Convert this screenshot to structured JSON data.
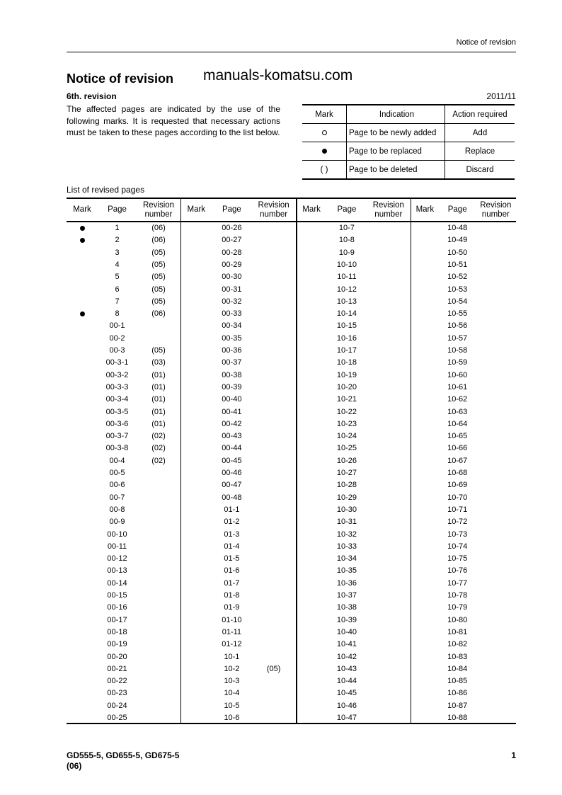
{
  "running_header": "Notice of revision",
  "title": "Notice of revision",
  "watermark": "manuals-komatsu.com",
  "revision": {
    "label": "6th. revision",
    "date": "2011/11"
  },
  "intro": "The affected pages are indicated by the use of the following marks. It is requested that necessary actions must be taken to these pages according to the list below.",
  "legend": {
    "headers": [
      "Mark",
      "Indication",
      "Action required"
    ],
    "rows": [
      {
        "mark": "circle",
        "indication": "Page to be newly added",
        "action": "Add"
      },
      {
        "mark": "filled-dot",
        "indication": "Page to be replaced",
        "action": "Replace"
      },
      {
        "mark": "( )",
        "indication": "Page to be deleted",
        "action": "Discard"
      }
    ]
  },
  "list_label": "List of revised pages",
  "list_headers": {
    "mark": "Mark",
    "page": "Page",
    "revision": "Revision number"
  },
  "columns": [
    [
      [
        "●",
        "1",
        "(06)"
      ],
      [
        "●",
        "2",
        "(06)"
      ],
      [
        "",
        "3",
        "(05)"
      ],
      [
        "",
        "4",
        "(05)"
      ],
      [
        "",
        "5",
        "(05)"
      ],
      [
        "",
        "6",
        "(05)"
      ],
      [
        "",
        "7",
        "(05)"
      ],
      [
        "●",
        "8",
        "(06)"
      ],
      [
        "",
        "00-1",
        ""
      ],
      [
        "",
        "00-2",
        ""
      ],
      [
        "",
        "00-3",
        "(05)"
      ],
      [
        "",
        "00-3-1",
        "(03)"
      ],
      [
        "",
        "00-3-2",
        "(01)"
      ],
      [
        "",
        "00-3-3",
        "(01)"
      ],
      [
        "",
        "00-3-4",
        "(01)"
      ],
      [
        "",
        "00-3-5",
        "(01)"
      ],
      [
        "",
        "00-3-6",
        "(01)"
      ],
      [
        "",
        "00-3-7",
        "(02)"
      ],
      [
        "",
        "00-3-8",
        "(02)"
      ],
      [
        "",
        "00-4",
        "(02)"
      ],
      [
        "",
        "00-5",
        ""
      ],
      [
        "",
        "00-6",
        ""
      ],
      [
        "",
        "00-7",
        ""
      ],
      [
        "",
        "00-8",
        ""
      ],
      [
        "",
        "00-9",
        ""
      ],
      [
        "",
        "00-10",
        ""
      ],
      [
        "",
        "00-11",
        ""
      ],
      [
        "",
        "00-12",
        ""
      ],
      [
        "",
        "00-13",
        ""
      ],
      [
        "",
        "00-14",
        ""
      ],
      [
        "",
        "00-15",
        ""
      ],
      [
        "",
        "00-16",
        ""
      ],
      [
        "",
        "00-17",
        ""
      ],
      [
        "",
        "00-18",
        ""
      ],
      [
        "",
        "00-19",
        ""
      ],
      [
        "",
        "00-20",
        ""
      ],
      [
        "",
        "00-21",
        ""
      ],
      [
        "",
        "00-22",
        ""
      ],
      [
        "",
        "00-23",
        ""
      ],
      [
        "",
        "00-24",
        ""
      ],
      [
        "",
        "00-25",
        ""
      ]
    ],
    [
      [
        "",
        "00-26",
        ""
      ],
      [
        "",
        "00-27",
        ""
      ],
      [
        "",
        "00-28",
        ""
      ],
      [
        "",
        "00-29",
        ""
      ],
      [
        "",
        "00-30",
        ""
      ],
      [
        "",
        "00-31",
        ""
      ],
      [
        "",
        "00-32",
        ""
      ],
      [
        "",
        "00-33",
        ""
      ],
      [
        "",
        "00-34",
        ""
      ],
      [
        "",
        "00-35",
        ""
      ],
      [
        "",
        "00-36",
        ""
      ],
      [
        "",
        "00-37",
        ""
      ],
      [
        "",
        "00-38",
        ""
      ],
      [
        "",
        "00-39",
        ""
      ],
      [
        "",
        "00-40",
        ""
      ],
      [
        "",
        "00-41",
        ""
      ],
      [
        "",
        "00-42",
        ""
      ],
      [
        "",
        "00-43",
        ""
      ],
      [
        "",
        "00-44",
        ""
      ],
      [
        "",
        "00-45",
        ""
      ],
      [
        "",
        "00-46",
        ""
      ],
      [
        "",
        "00-47",
        ""
      ],
      [
        "",
        "00-48",
        ""
      ],
      [
        "",
        "01-1",
        ""
      ],
      [
        "",
        "01-2",
        ""
      ],
      [
        "",
        "01-3",
        ""
      ],
      [
        "",
        "01-4",
        ""
      ],
      [
        "",
        "01-5",
        ""
      ],
      [
        "",
        "01-6",
        ""
      ],
      [
        "",
        "01-7",
        ""
      ],
      [
        "",
        "01-8",
        ""
      ],
      [
        "",
        "01-9",
        ""
      ],
      [
        "",
        "01-10",
        ""
      ],
      [
        "",
        "01-11",
        ""
      ],
      [
        "",
        "01-12",
        ""
      ],
      [
        "",
        "10-1",
        ""
      ],
      [
        "",
        "10-2",
        "(05)"
      ],
      [
        "",
        "10-3",
        ""
      ],
      [
        "",
        "10-4",
        ""
      ],
      [
        "",
        "10-5",
        ""
      ],
      [
        "",
        "10-6",
        ""
      ]
    ],
    [
      [
        "",
        "10-7",
        ""
      ],
      [
        "",
        "10-8",
        ""
      ],
      [
        "",
        "10-9",
        ""
      ],
      [
        "",
        "10-10",
        ""
      ],
      [
        "",
        "10-11",
        ""
      ],
      [
        "",
        "10-12",
        ""
      ],
      [
        "",
        "10-13",
        ""
      ],
      [
        "",
        "10-14",
        ""
      ],
      [
        "",
        "10-15",
        ""
      ],
      [
        "",
        "10-16",
        ""
      ],
      [
        "",
        "10-17",
        ""
      ],
      [
        "",
        "10-18",
        ""
      ],
      [
        "",
        "10-19",
        ""
      ],
      [
        "",
        "10-20",
        ""
      ],
      [
        "",
        "10-21",
        ""
      ],
      [
        "",
        "10-22",
        ""
      ],
      [
        "",
        "10-23",
        ""
      ],
      [
        "",
        "10-24",
        ""
      ],
      [
        "",
        "10-25",
        ""
      ],
      [
        "",
        "10-26",
        ""
      ],
      [
        "",
        "10-27",
        ""
      ],
      [
        "",
        "10-28",
        ""
      ],
      [
        "",
        "10-29",
        ""
      ],
      [
        "",
        "10-30",
        ""
      ],
      [
        "",
        "10-31",
        ""
      ],
      [
        "",
        "10-32",
        ""
      ],
      [
        "",
        "10-33",
        ""
      ],
      [
        "",
        "10-34",
        ""
      ],
      [
        "",
        "10-35",
        ""
      ],
      [
        "",
        "10-36",
        ""
      ],
      [
        "",
        "10-37",
        ""
      ],
      [
        "",
        "10-38",
        ""
      ],
      [
        "",
        "10-39",
        ""
      ],
      [
        "",
        "10-40",
        ""
      ],
      [
        "",
        "10-41",
        ""
      ],
      [
        "",
        "10-42",
        ""
      ],
      [
        "",
        "10-43",
        ""
      ],
      [
        "",
        "10-44",
        ""
      ],
      [
        "",
        "10-45",
        ""
      ],
      [
        "",
        "10-46",
        ""
      ],
      [
        "",
        "10-47",
        ""
      ]
    ],
    [
      [
        "",
        "10-48",
        ""
      ],
      [
        "",
        "10-49",
        ""
      ],
      [
        "",
        "10-50",
        ""
      ],
      [
        "",
        "10-51",
        ""
      ],
      [
        "",
        "10-52",
        ""
      ],
      [
        "",
        "10-53",
        ""
      ],
      [
        "",
        "10-54",
        ""
      ],
      [
        "",
        "10-55",
        ""
      ],
      [
        "",
        "10-56",
        ""
      ],
      [
        "",
        "10-57",
        ""
      ],
      [
        "",
        "10-58",
        ""
      ],
      [
        "",
        "10-59",
        ""
      ],
      [
        "",
        "10-60",
        ""
      ],
      [
        "",
        "10-61",
        ""
      ],
      [
        "",
        "10-62",
        ""
      ],
      [
        "",
        "10-63",
        ""
      ],
      [
        "",
        "10-64",
        ""
      ],
      [
        "",
        "10-65",
        ""
      ],
      [
        "",
        "10-66",
        ""
      ],
      [
        "",
        "10-67",
        ""
      ],
      [
        "",
        "10-68",
        ""
      ],
      [
        "",
        "10-69",
        ""
      ],
      [
        "",
        "10-70",
        ""
      ],
      [
        "",
        "10-71",
        ""
      ],
      [
        "",
        "10-72",
        ""
      ],
      [
        "",
        "10-73",
        ""
      ],
      [
        "",
        "10-74",
        ""
      ],
      [
        "",
        "10-75",
        ""
      ],
      [
        "",
        "10-76",
        ""
      ],
      [
        "",
        "10-77",
        ""
      ],
      [
        "",
        "10-78",
        ""
      ],
      [
        "",
        "10-79",
        ""
      ],
      [
        "",
        "10-80",
        ""
      ],
      [
        "",
        "10-81",
        ""
      ],
      [
        "",
        "10-82",
        ""
      ],
      [
        "",
        "10-83",
        ""
      ],
      [
        "",
        "10-84",
        ""
      ],
      [
        "",
        "10-85",
        ""
      ],
      [
        "",
        "10-86",
        ""
      ],
      [
        "",
        "10-87",
        ""
      ],
      [
        "",
        "10-88",
        ""
      ]
    ]
  ],
  "footer": {
    "models": "GD555-5, GD655-5, GD675-5",
    "revision": "(06)",
    "page_number": "1"
  }
}
